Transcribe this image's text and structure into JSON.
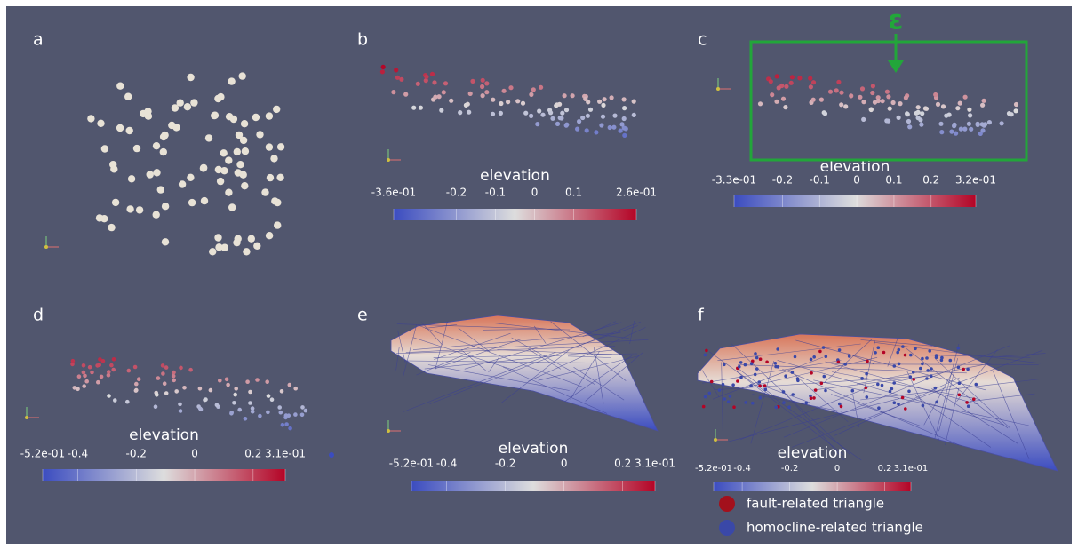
{
  "panels": [
    {
      "label": "a"
    },
    {
      "label": "b",
      "colorbar": {
        "title": "elevation",
        "range": [
          -0.36,
          0.26
        ],
        "ticks": [
          {
            "value": -0.36,
            "label": "-3.6e-01"
          },
          -0.2,
          -0.1,
          0,
          0.1,
          {
            "value": 0.26,
            "label": "2.6e-01"
          }
        ]
      }
    },
    {
      "label": "c",
      "colorbar": {
        "title": "elevation",
        "range": [
          -0.33,
          0.32
        ],
        "ticks": [
          {
            "value": -0.33,
            "label": "-3.3e-01"
          },
          -0.2,
          -0.1,
          0,
          0.1,
          0.2,
          {
            "value": 0.32,
            "label": "3.2e-01"
          }
        ]
      }
    },
    {
      "label": "d",
      "colorbar": {
        "title": "elevation",
        "range": [
          -0.52,
          0.31
        ],
        "ticks": [
          {
            "value": -0.52,
            "label": "-5.2e-01"
          },
          -0.4,
          -0.2,
          0,
          0.2,
          {
            "value": 0.31,
            "label": "3.1e-01"
          }
        ]
      }
    },
    {
      "label": "e",
      "colorbar": {
        "title": "elevation",
        "range": [
          -0.52,
          0.31
        ],
        "ticks": [
          {
            "value": -0.52,
            "label": "-5.2e-01"
          },
          -0.4,
          -0.2,
          0,
          0.2,
          {
            "value": 0.31,
            "label": "3.1e-01"
          }
        ]
      }
    },
    {
      "label": "f",
      "colorbar": {
        "title": "elevation",
        "range": [
          -0.52,
          0.31
        ],
        "ticks": [
          {
            "value": -0.52,
            "label": "-5.2e-01"
          },
          -0.4,
          -0.2,
          0,
          0.2,
          {
            "value": 0.31,
            "label": "3.1e-01"
          }
        ]
      }
    }
  ],
  "annotation": "ε",
  "legend": [
    {
      "label": "fault-related triangle",
      "color": "#a3101c"
    },
    {
      "label": "homocline-related triangle",
      "color": "#3a48a8"
    }
  ]
}
